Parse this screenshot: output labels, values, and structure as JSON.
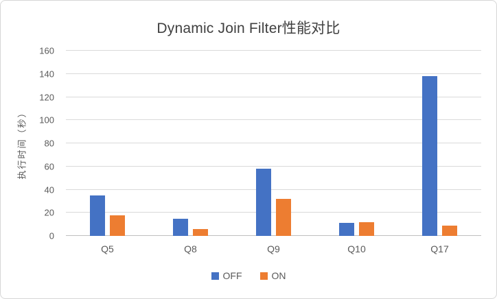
{
  "chart_data": {
    "type": "bar",
    "title": "Dynamic Join Filter性能对比",
    "ylabel": "执行时间（秒）",
    "xlabel": "",
    "categories": [
      "Q5",
      "Q8",
      "Q9",
      "Q10",
      "Q17"
    ],
    "series": [
      {
        "name": "OFF",
        "color": "#4472C4",
        "values": [
          35,
          15,
          58,
          11,
          138
        ]
      },
      {
        "name": "ON",
        "color": "#ED7D31",
        "values": [
          18,
          6,
          32,
          12,
          9
        ]
      }
    ],
    "ylim": [
      0,
      160
    ],
    "ytick_step": 20,
    "yticks": [
      0,
      20,
      40,
      60,
      80,
      100,
      120,
      140,
      160
    ],
    "grid": true,
    "legend_position": "bottom"
  },
  "colors": {
    "off_series": "#4472C4",
    "on_series": "#ED7D31",
    "gridline": "#D9D9D9",
    "text": "#595959",
    "title_text": "#404040"
  }
}
